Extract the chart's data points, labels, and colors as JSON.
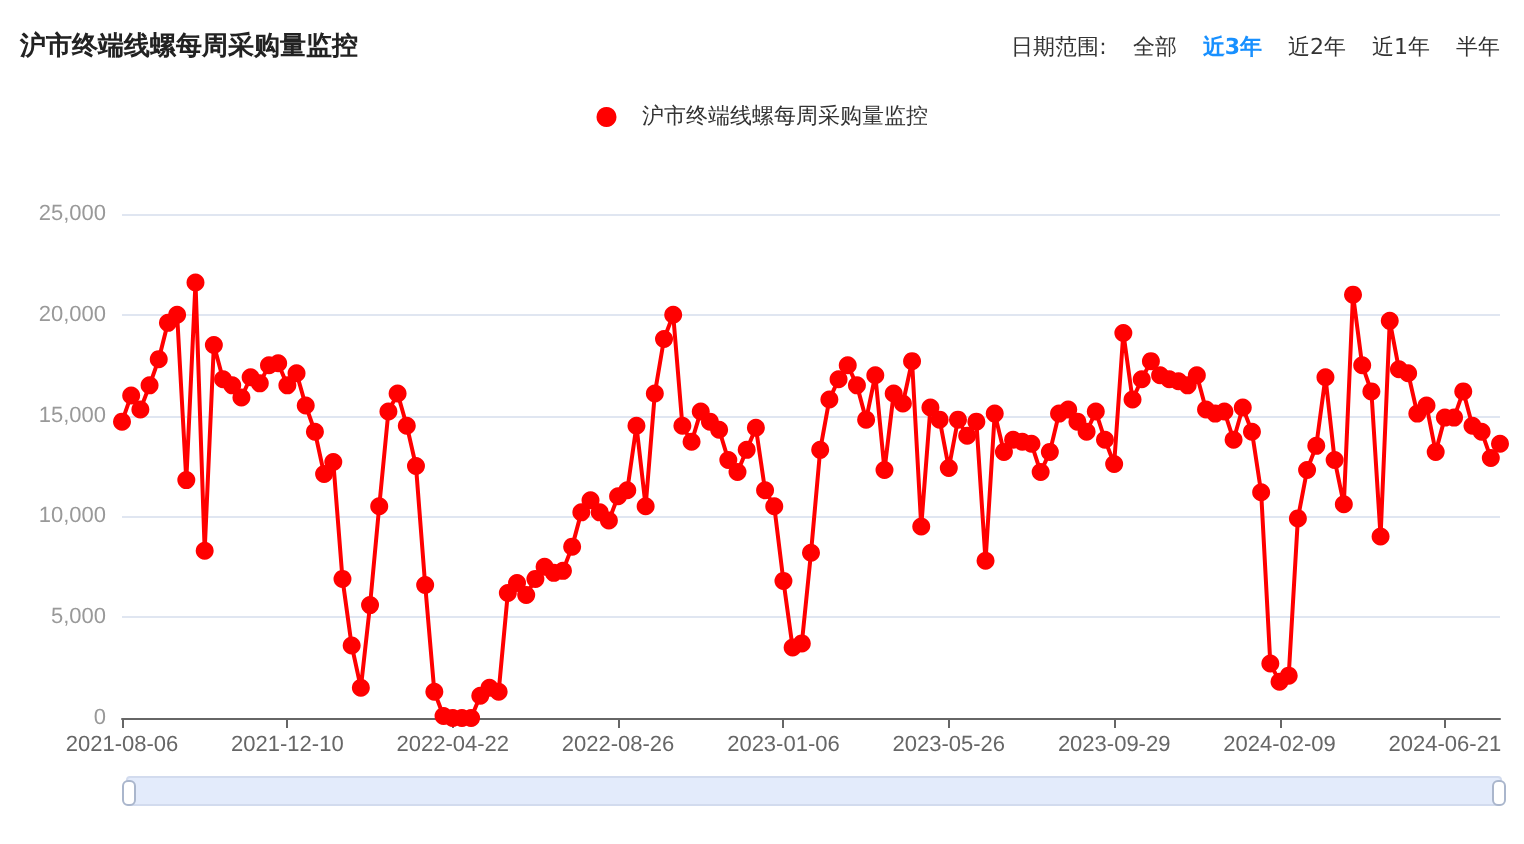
{
  "chart_data": {
    "type": "line",
    "title": "沪市终端线螺每周采购量监控",
    "annotations": [
      "日期范围:",
      "全部",
      "近3年",
      "近2年",
      "近1年",
      "半年"
    ],
    "categories": [
      "2021-08-06",
      null,
      null,
      null,
      null,
      null,
      null,
      null,
      null,
      null,
      null,
      null,
      null,
      null,
      null,
      null,
      null,
      null,
      "2021-12-10",
      null,
      null,
      null,
      null,
      null,
      null,
      null,
      null,
      null,
      null,
      null,
      null,
      null,
      null,
      null,
      null,
      null,
      "2022-04-22",
      null,
      null,
      null,
      null,
      null,
      null,
      null,
      null,
      null,
      null,
      null,
      null,
      null,
      null,
      null,
      null,
      null,
      "2022-08-26",
      null,
      null,
      null,
      null,
      null,
      null,
      null,
      null,
      null,
      null,
      null,
      null,
      null,
      null,
      null,
      null,
      null,
      "2023-01-06",
      null,
      null,
      null,
      null,
      null,
      null,
      null,
      null,
      null,
      null,
      null,
      null,
      null,
      null,
      null,
      null,
      null,
      "2023-05-26",
      null,
      null,
      null,
      null,
      null,
      null,
      null,
      null,
      null,
      null,
      null,
      null,
      null,
      null,
      null,
      null,
      null,
      "2023-09-29",
      null,
      null,
      null,
      null,
      null,
      null,
      null,
      null,
      null,
      null,
      null,
      null,
      null,
      null,
      null,
      null,
      null,
      "2024-02-09",
      null,
      null,
      null,
      null,
      null,
      null,
      null,
      null,
      null,
      null,
      null,
      null,
      null,
      null,
      null,
      null,
      null,
      "2024-06-21",
      null,
      null,
      null,
      null,
      null,
      null
    ],
    "series": [
      {
        "name": "沪市终端线螺每周采购量监控",
        "color": "#ff0000",
        "values": [
          14700,
          16000,
          15300,
          16500,
          17800,
          19600,
          20000,
          11800,
          21600,
          8300,
          18500,
          16800,
          16500,
          15900,
          16900,
          16600,
          17500,
          17600,
          16500,
          17100,
          15500,
          14200,
          12100,
          12700,
          6900,
          3600,
          1500,
          5600,
          10500,
          15200,
          16100,
          14500,
          12500,
          6600,
          1300,
          100,
          0,
          0,
          0,
          1100,
          1500,
          1300,
          6200,
          6700,
          6100,
          6900,
          7500,
          7200,
          7300,
          8500,
          10200,
          10800,
          10200,
          9800,
          11000,
          11300,
          14500,
          10500,
          16100,
          18800,
          20000,
          14500,
          13700,
          15200,
          14700,
          14300,
          12800,
          12200,
          13300,
          14400,
          11300,
          10500,
          6800,
          3500,
          3700,
          8200,
          13300,
          15800,
          16800,
          17500,
          16500,
          14800,
          17000,
          12300,
          16100,
          15600,
          17700,
          9500,
          15400,
          14800,
          12400,
          14800,
          14000,
          14700,
          7800,
          15100,
          13200,
          13800,
          13700,
          13600,
          12200,
          13200,
          15100,
          15300,
          14700,
          14200,
          15200,
          13800,
          12600,
          19100,
          15800,
          16800,
          17700,
          17000,
          16800,
          16700,
          16500,
          17000,
          15300,
          15100,
          15200,
          13800,
          15400,
          14200,
          11200,
          2700,
          1800,
          2100,
          9900,
          12300,
          13500,
          16900,
          12800,
          10600,
          21000,
          17500,
          16200,
          9000,
          19700,
          17300,
          17100,
          15100,
          15500,
          13200,
          14900,
          14900,
          16200,
          14500,
          14200,
          12900,
          13600
        ]
      }
    ],
    "ylim": [
      0,
      25000
    ],
    "yticks": [
      {
        "value": 0,
        "label": "0"
      },
      {
        "value": 5000,
        "label": "5,000"
      },
      {
        "value": 10000,
        "label": "10,000"
      },
      {
        "value": 15000,
        "label": "15,000"
      },
      {
        "value": 20000,
        "label": "20,000"
      },
      {
        "value": 25000,
        "label": "25,000"
      }
    ],
    "grid": "y",
    "legend": "top",
    "marker": "circle",
    "line_style": "solid"
  }
}
